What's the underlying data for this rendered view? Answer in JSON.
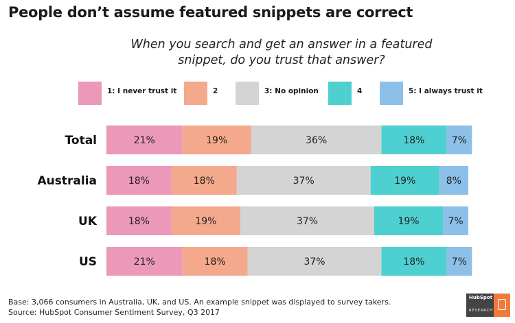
{
  "header": {
    "title": "People don’t assume featured snippets are correct",
    "subtitle_line1": "When you search and get an answer in a featured",
    "subtitle_line2": "snippet, do you trust that answer?"
  },
  "colors": {
    "never": "#ec98b8",
    "two": "#f5a98c",
    "no_opinion": "#d4d4d4",
    "four": "#4ecfd0",
    "always": "#8cc0e8"
  },
  "legend": [
    {
      "label": "1: I never trust it",
      "color": "#ec98b8"
    },
    {
      "label": "2",
      "color": "#f5a98c"
    },
    {
      "label": "3: No opinion",
      "color": "#d4d4d4"
    },
    {
      "label": "4",
      "color": "#4ecfd0"
    },
    {
      "label": "5: I always trust it",
      "color": "#8cc0e8"
    }
  ],
  "chart_data": {
    "type": "bar",
    "orientation": "horizontal",
    "stacked": true,
    "title": "People don’t assume featured snippets are correct",
    "subtitle": "When you search and get an answer in a featured snippet, do you trust that answer?",
    "categories": [
      "Total",
      "Australia",
      "UK",
      "US"
    ],
    "series": [
      {
        "name": "1: I never trust it",
        "values": [
          21,
          18,
          18,
          21
        ],
        "color": "#ec98b8"
      },
      {
        "name": "2",
        "values": [
          19,
          18,
          19,
          18
        ],
        "color": "#f5a98c"
      },
      {
        "name": "3: No opinion",
        "values": [
          36,
          37,
          37,
          37
        ],
        "color": "#d4d4d4"
      },
      {
        "name": "4",
        "values": [
          18,
          19,
          19,
          18
        ],
        "color": "#4ecfd0"
      },
      {
        "name": "5: I always trust it",
        "values": [
          7,
          8,
          7,
          7
        ],
        "color": "#8cc0e8"
      }
    ],
    "value_suffix": "%",
    "legend_position": "top",
    "grid": false
  },
  "footer": {
    "line1": "Base: 3,066 consumers in Australia, UK, and US. An example snippet was displayed to survey takers.",
    "line2": "Source: HubSpot Consumer Sentiment Survey, Q3 2017"
  },
  "logo": {
    "brand": "HubSpot",
    "tag": "RESEARCH"
  }
}
